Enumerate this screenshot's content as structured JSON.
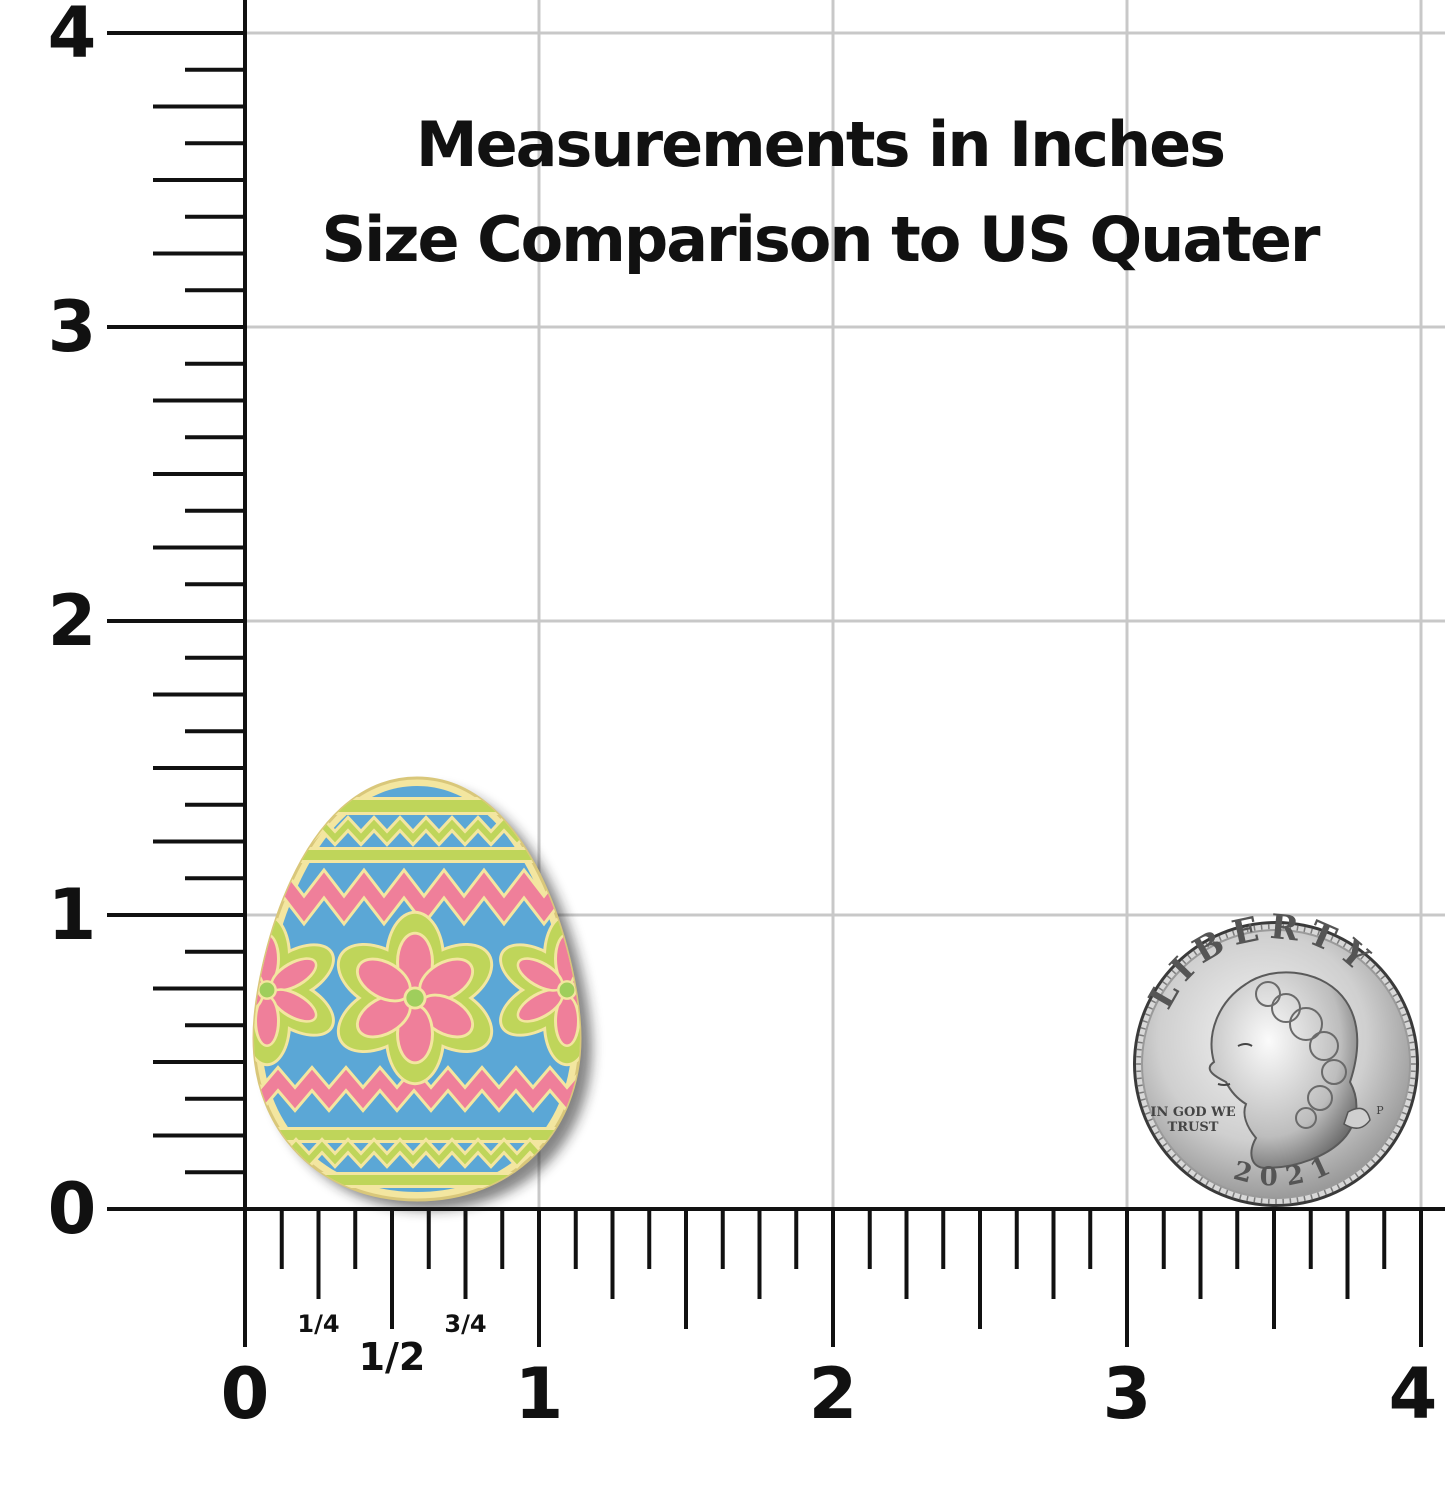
{
  "title": {
    "line1": "Measurements in Inches",
    "line2": "Size Comparison to US Quater"
  },
  "vertical_ruler": {
    "labels": [
      "0",
      "1",
      "2",
      "3",
      "4"
    ]
  },
  "horizontal_ruler": {
    "labels": [
      "0",
      "1",
      "2",
      "3",
      "4"
    ],
    "fraction_labels": [
      "1/4",
      "1/2",
      "3/4"
    ]
  },
  "coin": {
    "name": "us-quarter",
    "rim_text": "LIBERTY",
    "motto_line1": "IN GOD WE",
    "motto_line2": "TRUST",
    "mint_mark": "P",
    "year": "2021"
  },
  "egg": {
    "name": "easter-egg-pin",
    "colors": {
      "body": "#5ba7d6",
      "pink": "#ef7f9a",
      "green": "#bfd55a",
      "gold": "#f3e6a0",
      "center": "#9fce5c"
    }
  },
  "colors": {
    "grid": "#c8c8c8",
    "ruler": "#111111"
  }
}
